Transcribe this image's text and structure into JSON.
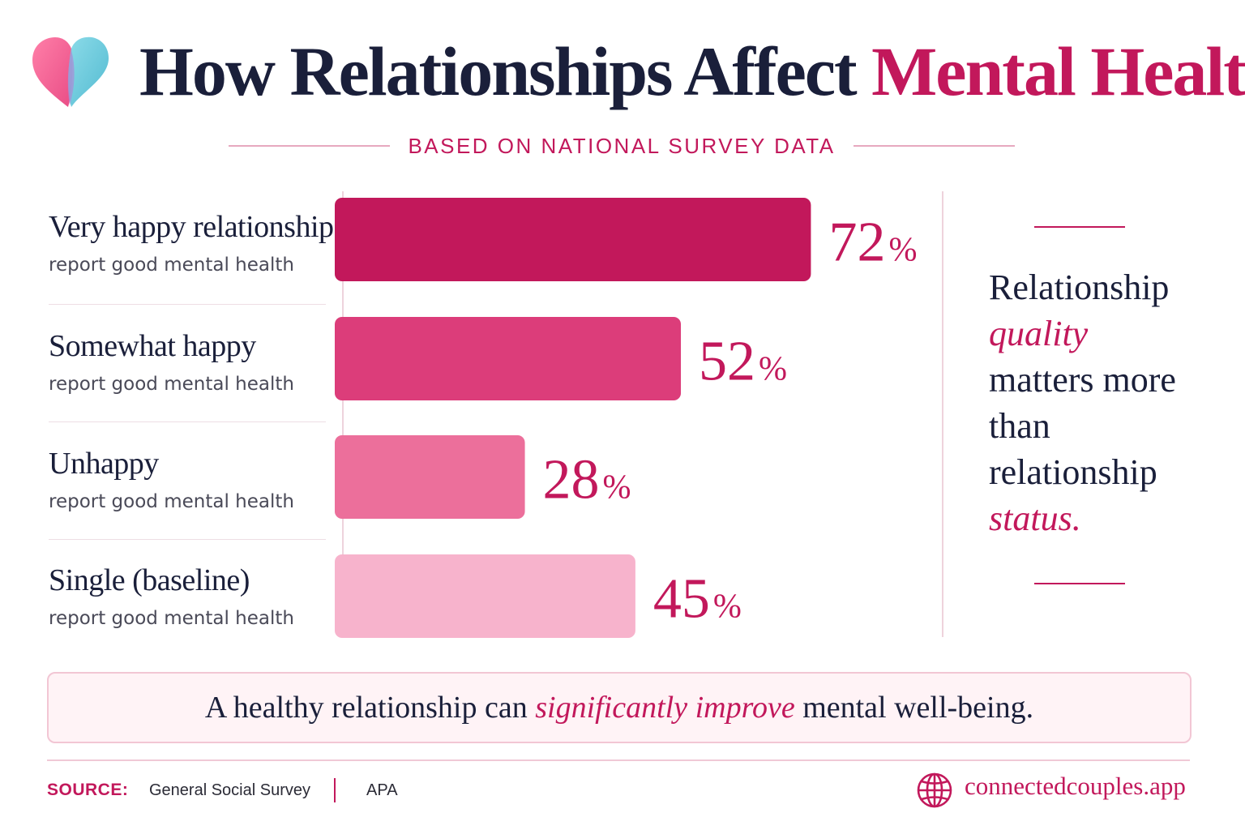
{
  "header": {
    "title_part1": "How Relationships Affect ",
    "title_part2": "Mental Health",
    "subtitle": "BASED ON NATIONAL SURVEY DATA"
  },
  "colors": {
    "accent": "#c2185b",
    "bar_colors": [
      "#c2185b",
      "#dc3d7a",
      "#ec6f9b",
      "#f7b3cc"
    ]
  },
  "chart_data": {
    "type": "bar",
    "orientation": "horizontal",
    "categories": [
      "Very happy relationship",
      "Somewhat happy",
      "Unhappy",
      "Single (baseline)"
    ],
    "category_sublabel": "report good mental health",
    "values": [
      72,
      52,
      28,
      45
    ],
    "value_labels": [
      "72",
      "52",
      "28",
      "45"
    ],
    "unit": "%",
    "xlim": [
      0,
      100
    ],
    "grid": false
  },
  "sidebar": {
    "line1": "Relationship",
    "line2": "quality",
    "line3": "matters more",
    "line4": "than",
    "line5": "relationship",
    "line6": "status."
  },
  "callout": {
    "part1": "A healthy relationship can ",
    "part2": "significantly improve",
    "part3": " mental well-being."
  },
  "footer": {
    "source_label": "SOURCE:",
    "sources": [
      "General Social Survey",
      "APA"
    ],
    "website": "connectedcouples.app",
    "website_icon": "globe-icon"
  },
  "logo": {
    "icon": "heart-icon"
  }
}
